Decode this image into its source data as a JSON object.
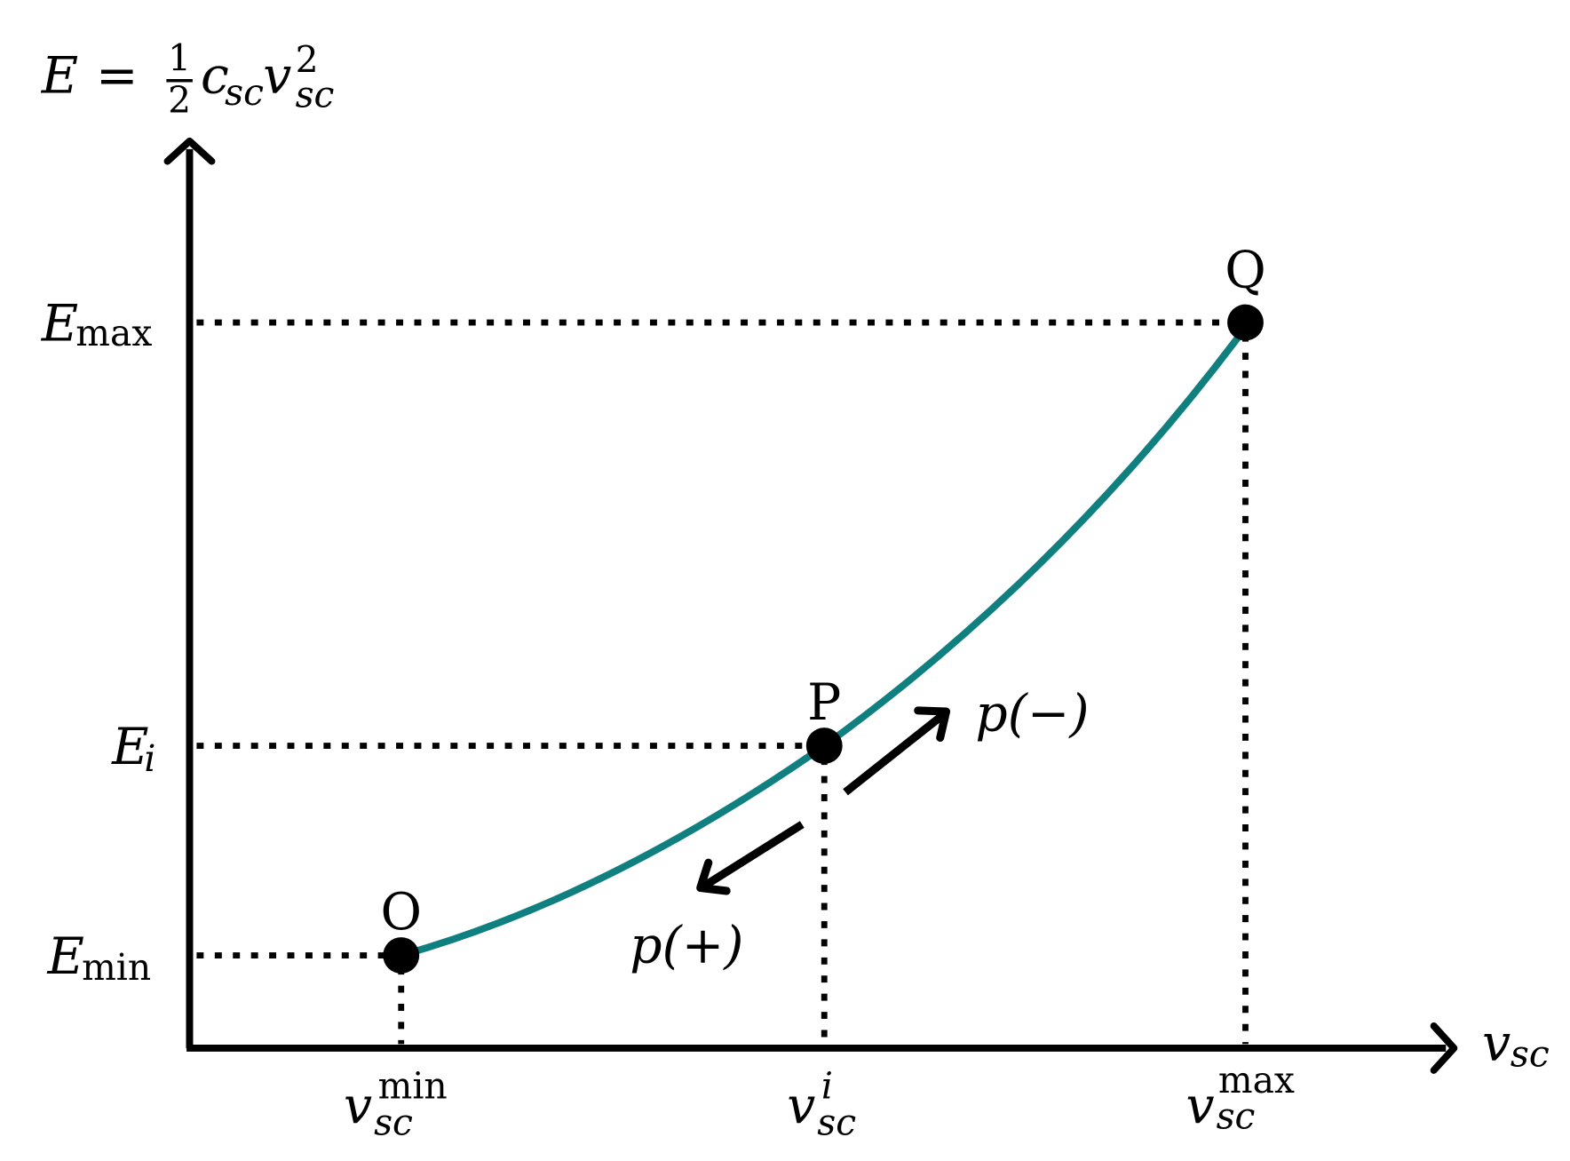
{
  "axes": {
    "y_label": {
      "lhs": "E",
      "eq": "=",
      "frac_num": "1",
      "frac_den": "2",
      "c": "c",
      "c_sub": "sc",
      "v": "v",
      "v_sup": "2",
      "v_sub": "sc"
    },
    "x_label": {
      "base": "v",
      "sub": "sc"
    }
  },
  "y_ticks": [
    {
      "base": "E",
      "sub": "max"
    },
    {
      "base": "E",
      "sub": "i"
    },
    {
      "base": "E",
      "sub": "min"
    }
  ],
  "x_ticks": [
    {
      "base": "v",
      "sub": "sc",
      "sup": "min"
    },
    {
      "base": "v",
      "sub": "sc",
      "sup": "i"
    },
    {
      "base": "v",
      "sub": "sc",
      "sup": "max"
    }
  ],
  "points": [
    {
      "label": "O"
    },
    {
      "label": "P"
    },
    {
      "label": "Q"
    }
  ],
  "arrows": [
    {
      "label": "p(−)"
    },
    {
      "label": "p(+)"
    }
  ]
}
